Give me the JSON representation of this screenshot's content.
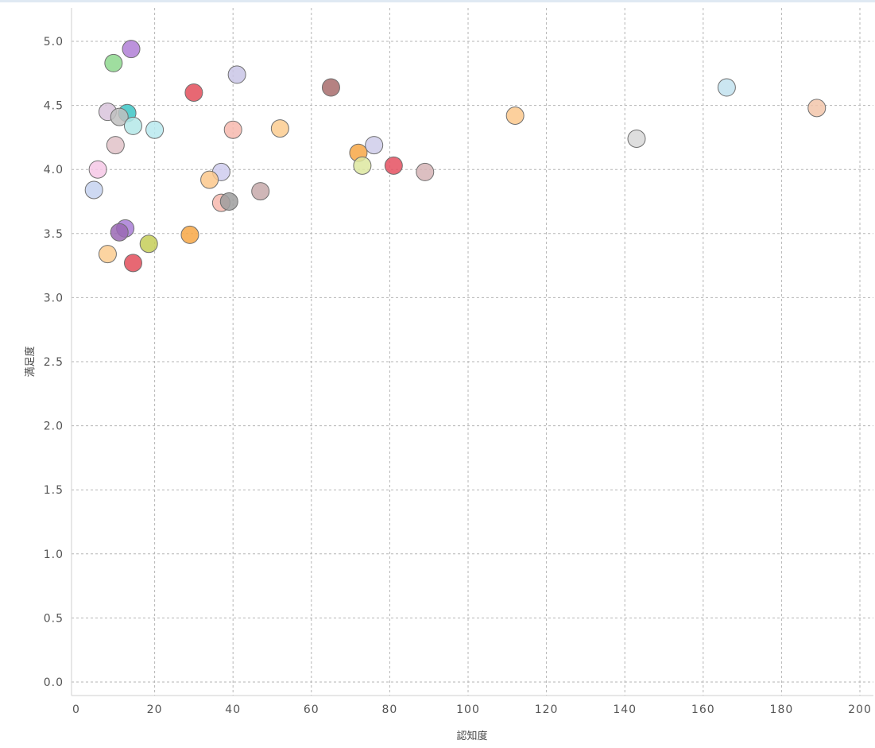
{
  "chart_data": {
    "type": "scatter",
    "title": "",
    "xlabel": "認知度",
    "ylabel": "満足度",
    "xlim": [
      0,
      200
    ],
    "ylim": [
      0,
      5.2
    ],
    "x_ticks": [
      "0",
      "20",
      "40",
      "60",
      "80",
      "100",
      "120",
      "140",
      "160",
      "180",
      "200"
    ],
    "y_ticks": [
      "0.0",
      "0.5",
      "1.0",
      "1.5",
      "2.0",
      "2.5",
      "3.0",
      "3.5",
      "4.0",
      "4.5",
      "5.0"
    ],
    "grid": true,
    "legend": "none",
    "points": [
      {
        "x": 14,
        "y": 4.94,
        "color": "#b07fd6"
      },
      {
        "x": 9.5,
        "y": 4.83,
        "color": "#8ed88e"
      },
      {
        "x": 41,
        "y": 4.74,
        "color": "#c9c5e6"
      },
      {
        "x": 30,
        "y": 4.6,
        "color": "#e34d5a"
      },
      {
        "x": 65,
        "y": 4.64,
        "color": "#a86c6c"
      },
      {
        "x": 166,
        "y": 4.64,
        "color": "#c2e2ee"
      },
      {
        "x": 189,
        "y": 4.48,
        "color": "#f2c6aa"
      },
      {
        "x": 8,
        "y": 4.45,
        "color": "#d9c4dc"
      },
      {
        "x": 13,
        "y": 4.44,
        "color": "#3dc5c5"
      },
      {
        "x": 11,
        "y": 4.41,
        "color": "#c0c0c0"
      },
      {
        "x": 112,
        "y": 4.42,
        "color": "#fbc88c"
      },
      {
        "x": 14.5,
        "y": 4.34,
        "color": "#b4e8e8"
      },
      {
        "x": 20,
        "y": 4.31,
        "color": "#b9e9ee"
      },
      {
        "x": 40,
        "y": 4.31,
        "color": "#f7b8ae"
      },
      {
        "x": 52,
        "y": 4.32,
        "color": "#fbcd90"
      },
      {
        "x": 143,
        "y": 4.24,
        "color": "#d8d8d8"
      },
      {
        "x": 10,
        "y": 4.19,
        "color": "#e1c2c8"
      },
      {
        "x": 76,
        "y": 4.19,
        "color": "#cfcdea"
      },
      {
        "x": 72,
        "y": 4.13,
        "color": "#f7a745"
      },
      {
        "x": 73,
        "y": 4.03,
        "color": "#dde8a0"
      },
      {
        "x": 81,
        "y": 4.03,
        "color": "#e55060"
      },
      {
        "x": 89,
        "y": 3.98,
        "color": "#d6b4b6"
      },
      {
        "x": 5.5,
        "y": 4.0,
        "color": "#f6c8e6"
      },
      {
        "x": 37,
        "y": 3.98,
        "color": "#cfcdee"
      },
      {
        "x": 34,
        "y": 3.92,
        "color": "#fbc88c"
      },
      {
        "x": 4.5,
        "y": 3.84,
        "color": "#c6d2f0"
      },
      {
        "x": 47,
        "y": 3.83,
        "color": "#c7a9aa"
      },
      {
        "x": 37,
        "y": 3.74,
        "color": "#f7b8ae"
      },
      {
        "x": 39,
        "y": 3.75,
        "color": "#9e9e9e"
      },
      {
        "x": 12.5,
        "y": 3.54,
        "color": "#a87cd6"
      },
      {
        "x": 11,
        "y": 3.51,
        "color": "#9a68b4"
      },
      {
        "x": 29,
        "y": 3.49,
        "color": "#f7a745"
      },
      {
        "x": 18.5,
        "y": 3.42,
        "color": "#c6ce58"
      },
      {
        "x": 8,
        "y": 3.34,
        "color": "#fbcd90"
      },
      {
        "x": 14.5,
        "y": 3.27,
        "color": "#e34d5a"
      }
    ]
  }
}
